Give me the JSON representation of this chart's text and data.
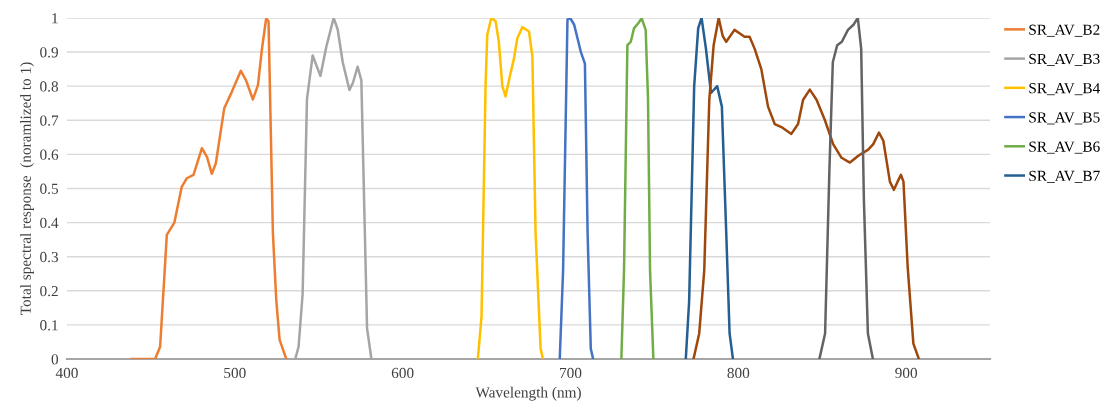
{
  "chart_data": {
    "type": "line",
    "xlabel": "Wavelength (nm)",
    "ylabel": "Total spectral response  (noramlized to 1)",
    "xlim": [
      400,
      950
    ],
    "xticks": [
      400,
      500,
      600,
      700,
      800,
      900
    ],
    "ylim": [
      0,
      1
    ],
    "yticks": [
      0,
      0.1,
      0.2,
      0.3,
      0.4,
      0.5,
      0.6,
      0.7,
      0.8,
      0.9,
      1
    ],
    "grid": "y",
    "legend": "right",
    "marker": "none",
    "line_style": "solid",
    "series": [
      {
        "name": "SR_AV_B2",
        "color": "#ed7d31",
        "x": [
          438.6,
          452.5,
          455.5,
          459.5,
          464,
          468.4,
          471.4,
          475.4,
          480.4,
          483.4,
          486.3,
          488.7,
          493.7,
          498.3,
          503.6,
          506.6,
          510.8,
          513.8,
          516.1,
          518.7,
          520.1,
          522.7,
          524.7,
          526.7,
          530.7
        ],
        "values": [
          0,
          0,
          0.036,
          0.364,
          0.4,
          0.505,
          0.53,
          0.54,
          0.618,
          0.593,
          0.543,
          0.574,
          0.735,
          0.784,
          0.845,
          0.818,
          0.761,
          0.803,
          0.906,
          0.999,
          0.99,
          0.369,
          0.173,
          0.056,
          0
        ]
      },
      {
        "name": "SR_AV_B3",
        "color": "#a5a5a5",
        "x": [
          536,
          538,
          540.4,
          543,
          546.4,
          551,
          554.6,
          558.9,
          561.3,
          564.3,
          568.3,
          570.4,
          573.2,
          575.4,
          578.8,
          581.4
        ],
        "values": [
          0,
          0.036,
          0.19,
          0.762,
          0.89,
          0.83,
          0.917,
          1,
          0.966,
          0.87,
          0.789,
          0.81,
          0.857,
          0.817,
          0.09,
          0
        ]
      },
      {
        "name": "SR_AV_B4",
        "color": "#ffc000",
        "x": [
          644.8,
          647,
          649.4,
          650.4,
          652.8,
          655.4,
          657.3,
          659.4,
          661.3,
          663.9,
          666.3,
          668.3,
          671.3,
          675.3,
          677.3,
          679.2,
          682.2,
          683.6
        ],
        "values": [
          0,
          0.124,
          0.8,
          0.95,
          1,
          0.99,
          0.93,
          0.8,
          0.77,
          0.83,
          0.88,
          0.94,
          0.973,
          0.96,
          0.887,
          0.37,
          0.03,
          0
        ]
      },
      {
        "name": "SR_AV_B5",
        "color": "#4472c4",
        "x": [
          693.6,
          695.6,
          698.2,
          699.8,
          702.2,
          706.2,
          708.6,
          710.2,
          712.1,
          713.5
        ],
        "values": [
          0,
          0.26,
          0.995,
          1,
          0.98,
          0.9,
          0.866,
          0.37,
          0.03,
          0
        ]
      },
      {
        "name": "SR_AV_B6",
        "color": "#70ad47",
        "x": [
          730.3,
          731.9,
          733.9,
          735.9,
          737.9,
          740.5,
          742.4,
          744.8,
          746.2,
          747.4,
          749.4
        ],
        "values": [
          0,
          0.26,
          0.92,
          0.93,
          0.97,
          0.985,
          0.999,
          0.965,
          0.76,
          0.26,
          0
        ]
      },
      {
        "name": "SR_AV_B7",
        "color": "#255e91",
        "x": [
          768.7,
          770.7,
          773.7,
          776.1,
          778.1,
          780.7,
          783.7,
          787.4,
          790.2,
          792.8,
          794.8,
          796.8
        ],
        "values": [
          0,
          0.17,
          0.8,
          0.97,
          1,
          0.91,
          0.78,
          0.8,
          0.74,
          0.37,
          0.075,
          0
        ]
      },
      {
        "color": "#9e480e",
        "x": [
          773.3,
          776.7,
          779.7,
          782.7,
          785.3,
          788.3,
          790.7,
          792.8,
          797.7,
          800.7,
          803.7,
          806.7,
          809.7,
          813.7,
          817.7,
          821.7,
          825.7,
          831.6,
          835.6,
          838.6,
          842.6,
          846.6,
          851.6,
          856.5,
          861.5,
          866.5,
          871.5,
          877.4,
          880.4,
          883.8,
          886.4,
          890.3,
          892.7,
          894.9,
          896.9,
          898.4,
          900.9,
          904.3,
          907.6
        ],
        "values": [
          0,
          0.075,
          0.26,
          0.76,
          0.92,
          1,
          0.947,
          0.93,
          0.965,
          0.955,
          0.945,
          0.945,
          0.91,
          0.85,
          0.74,
          0.689,
          0.68,
          0.66,
          0.689,
          0.76,
          0.79,
          0.76,
          0.7,
          0.63,
          0.59,
          0.576,
          0.596,
          0.614,
          0.63,
          0.664,
          0.64,
          0.52,
          0.496,
          0.52,
          0.54,
          0.52,
          0.27,
          0.045,
          0
        ]
      },
      {
        "color": "#636363",
        "x": [
          848.3,
          851.7,
          854.3,
          856.3,
          858.9,
          861.7,
          865.3,
          868.6,
          871.2,
          873.2,
          874.8,
          877.2,
          880.2
        ],
        "values": [
          0,
          0.075,
          0.56,
          0.87,
          0.92,
          0.93,
          0.965,
          0.98,
          1,
          0.91,
          0.47,
          0.075,
          0
        ]
      }
    ]
  }
}
